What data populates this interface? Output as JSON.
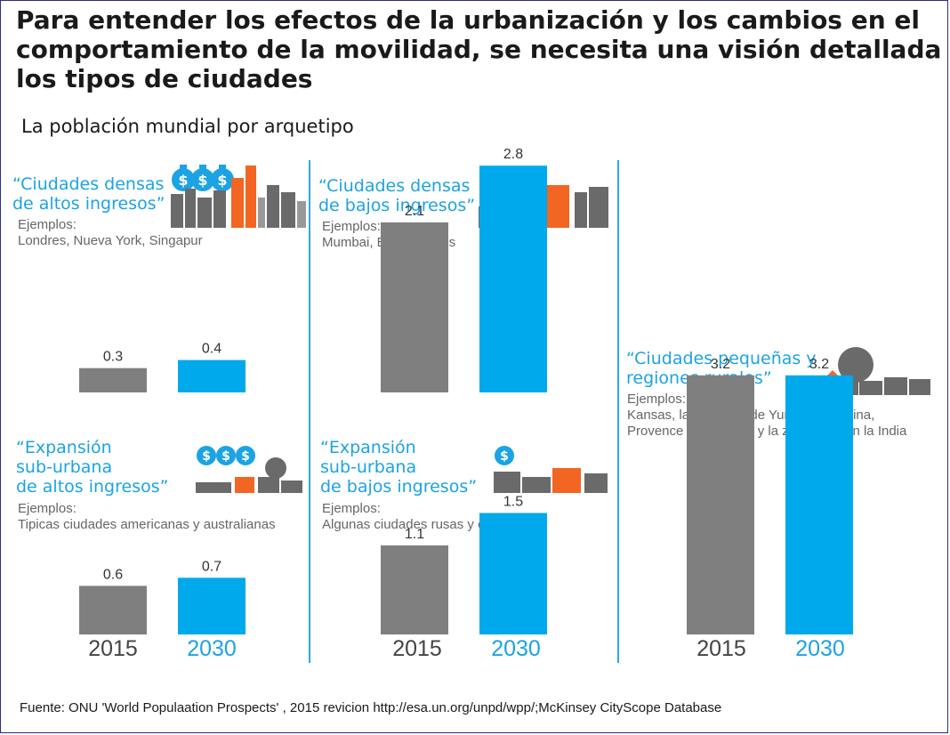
{
  "headline": [
    "Para entender los efectos de la urbanización y los  cambios en el",
    "comportamiento de la movilidad, se necesita una visión detallada",
    "los tipos de ciudades"
  ],
  "subtitle": "La población mundial por arquetipo",
  "footer": "Fuente: ONU 'World Populaation Prospects' , 2015 revicion http://esa.un.org/unpd/wpp/;McKinsey CityScope Database",
  "examples_label": "Ejemplos:",
  "panels": [
    {
      "title_lines": [
        "“Ciudades densas",
        "de altos ingresos”"
      ],
      "examples": [
        "Londres, Nueva York, Singapur"
      ]
    },
    {
      "title_lines": [
        "“Ciudades densas",
        "de bajos ingresos”"
      ],
      "examples": [
        "Mumbai, Buenos Aires"
      ]
    },
    {
      "title_lines": [
        "“Expansión",
        "sub-urbana",
        "de altos ingresos”"
      ],
      "examples": [
        "Tipicas ciudades americanas y australianas"
      ]
    },
    {
      "title_lines": [
        "“Expansión",
        "sub-urbana",
        "de bajos ingresos”"
      ],
      "examples": [
        "Algunas ciudades rusas y chinas"
      ]
    },
    {
      "title_lines": [
        "“Ciudades pequeñas  y",
        "regiones rurales”"
      ],
      "examples": [
        "Kansas, la provincia de Yunnan en China,",
        "Provence en Francia, y la zona rural en la India"
      ]
    }
  ],
  "icons": [
    "money-bag-icon",
    "city-skyline-icon",
    "suburb-houses-icon",
    "trees-icon",
    "rural-houses-icon"
  ],
  "colors": {
    "bar_2015": "#7f7f7f",
    "bar_2030": "#00a9eb",
    "title": "#1ba3e4",
    "divider": "#2aa8e8"
  },
  "chart_data": [
    {
      "type": "bar",
      "title": "“Ciudades densas de altos ingresos”",
      "categories": [
        "2015",
        "2030"
      ],
      "values": [
        0.3,
        0.4
      ]
    },
    {
      "type": "bar",
      "title": "“Ciudades densas de bajos ingresos”",
      "categories": [
        "2015",
        "2030"
      ],
      "values": [
        2.1,
        2.8
      ]
    },
    {
      "type": "bar",
      "title": "“Expansión sub-urbana de altos ingresos”",
      "categories": [
        "2015",
        "2030"
      ],
      "values": [
        0.6,
        0.7
      ]
    },
    {
      "type": "bar",
      "title": "“Expansión sub-urbana de bajos ingresos”",
      "categories": [
        "2015",
        "2030"
      ],
      "values": [
        1.1,
        1.5
      ]
    },
    {
      "type": "bar",
      "title": "“Ciudades pequeñas y regiones rurales”",
      "categories": [
        "2015",
        "2030"
      ],
      "values": [
        3.2,
        3.2
      ]
    }
  ]
}
